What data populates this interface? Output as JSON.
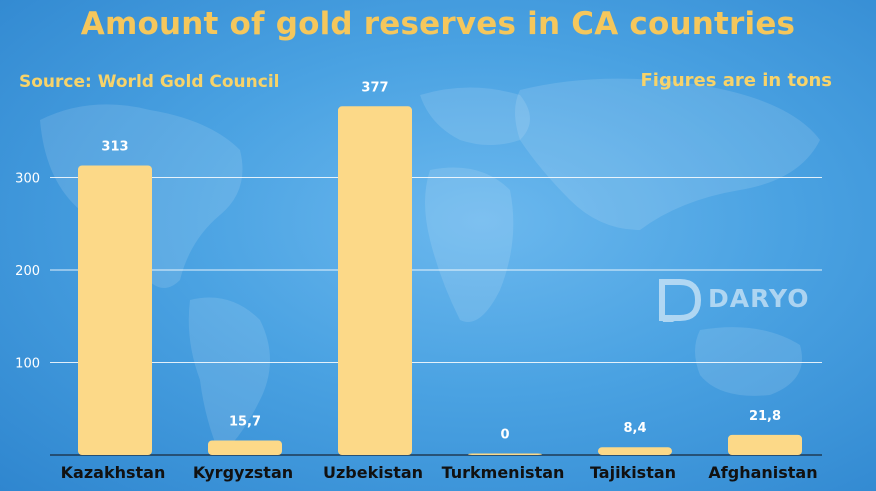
{
  "header": {
    "title": "Amount of gold reserves in CA countries",
    "source": "Source: World Gold Council",
    "units_note": "Figures are in tons"
  },
  "watermark": {
    "brand": "DARYO"
  },
  "colors": {
    "bar": "#fcd988",
    "title": "#f5c75c",
    "background": "#4aa2e2"
  },
  "chart_data": {
    "type": "bar",
    "title": "Amount of gold reserves in CA countries",
    "categories": [
      "Kazakhstan",
      "Kyrgyzstan",
      "Uzbekistan",
      "Turkmenistan",
      "Tajikistan",
      "Afghanistan"
    ],
    "values": [
      313,
      15.7,
      377,
      0,
      8.4,
      21.8
    ],
    "value_labels": [
      "313",
      "15,7",
      "377",
      "0",
      "8,4",
      "21,8"
    ],
    "ylim": [
      0,
      400
    ],
    "yticks": [
      100,
      200,
      300
    ],
    "ytick_labels": [
      "100",
      "200",
      "300"
    ],
    "grid": true,
    "xlabel": "",
    "ylabel": ""
  }
}
